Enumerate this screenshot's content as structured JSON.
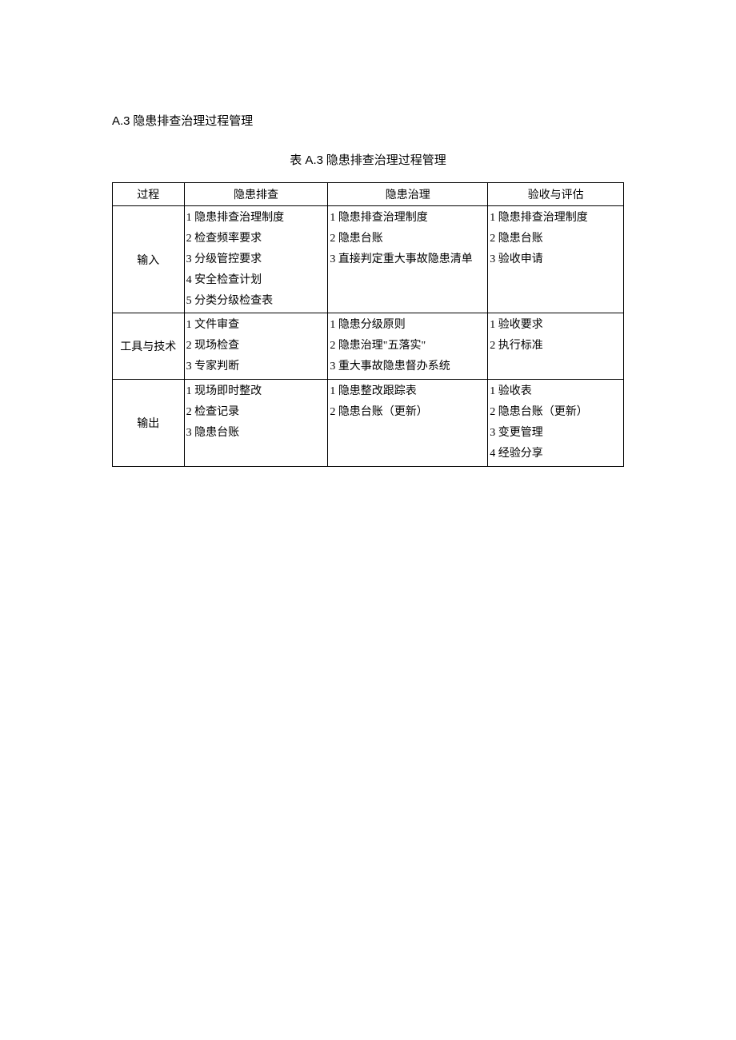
{
  "heading": {
    "prefix": "A.3",
    "text": "隐患排查治理过程管理"
  },
  "caption": {
    "prefix": "表 A.3",
    "text": "隐患排查治理过程管理"
  },
  "table": {
    "headers": {
      "col1": "过程",
      "col2": "隐患排查",
      "col3": "隐患治理",
      "col4": "验收与评估"
    },
    "rows": {
      "r1": {
        "label": "输入",
        "c2": {
          "i1": "1 隐患排查治理制度",
          "i2": "2 检查频率要求",
          "i3": "3 分级管控要求",
          "i4": "4 安全检查计划",
          "i5": "5 分类分级检查表"
        },
        "c3": {
          "i1": "1 隐患排查治理制度",
          "i2": "2 隐患台账",
          "i3": "3 直接判定重大事故隐患清单"
        },
        "c4": {
          "i1": "1 隐患排查治理制度",
          "i2": "2 隐患台账",
          "i3": "3 验收申请"
        }
      },
      "r2": {
        "label": "工具与技术",
        "c2": {
          "i1": "1 文件审查",
          "i2": "2 现场检查",
          "i3": "3 专家判断"
        },
        "c3": {
          "i1": "1 隐患分级原则",
          "i2": "2 隐患治理\"五落实\"",
          "i3": "3 重大事故隐患督办系统"
        },
        "c4": {
          "i1": "1 验收要求",
          "i2": "2 执行标准"
        }
      },
      "r3": {
        "label": "输出",
        "c2": {
          "i1": "1 现场即时整改",
          "i2": "2 检查记录",
          "i3": "3 隐患台账"
        },
        "c3": {
          "i1": "1 隐患整改跟踪表",
          "i2": "2 隐患台账（更新）"
        },
        "c4": {
          "i1": "1 验收表",
          "i2": "2 隐患台账（更新）",
          "i3": "3 变更管理",
          "i4": "4 经验分享"
        }
      }
    }
  }
}
